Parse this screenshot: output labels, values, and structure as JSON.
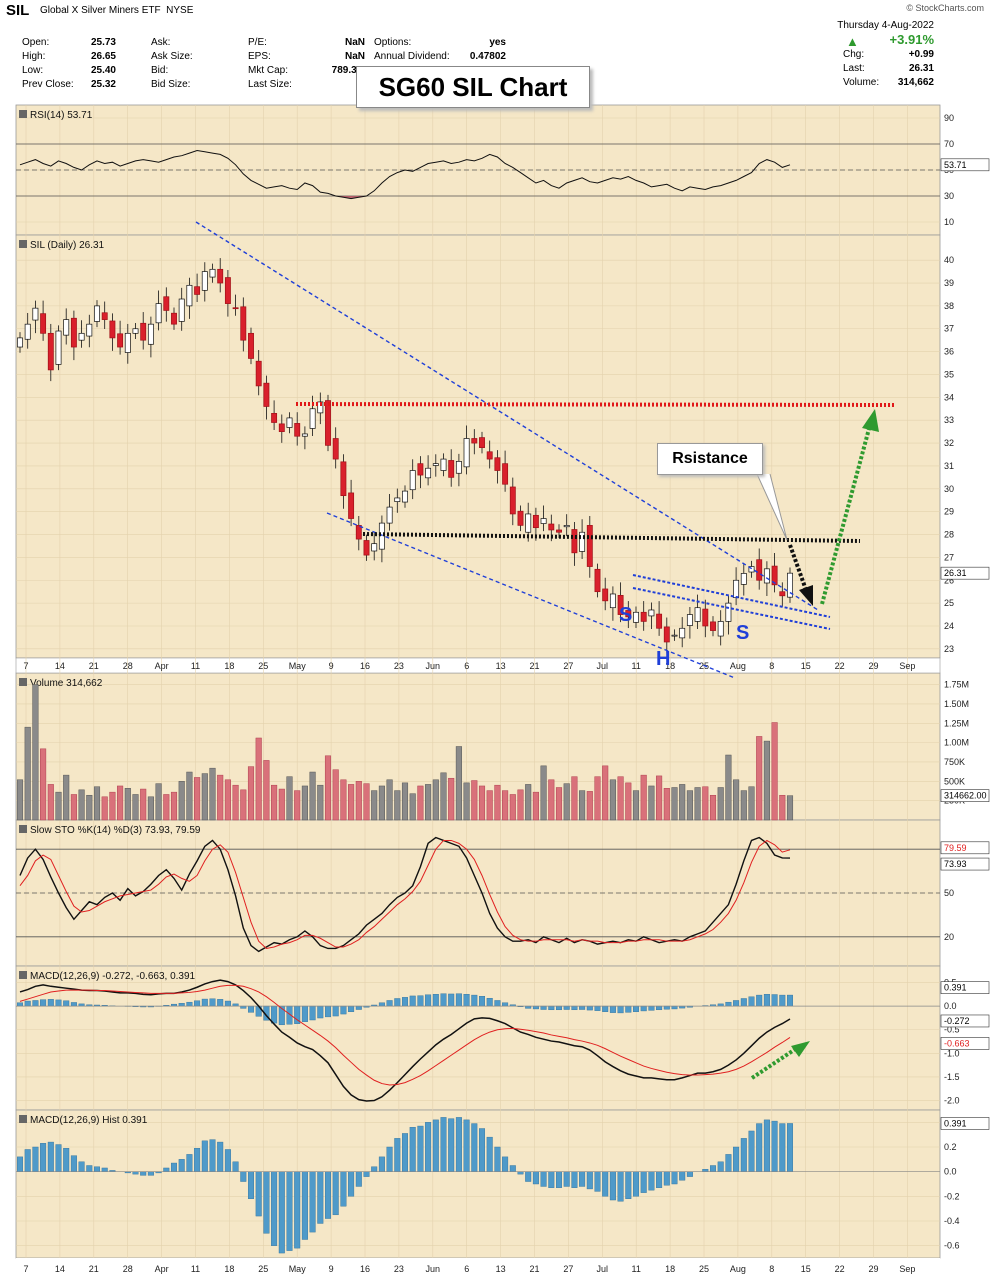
{
  "header": {
    "symbol": "SIL",
    "name": "Global X Silver Miners ETF",
    "exchange": "NYSE",
    "credit": "© StockCharts.com",
    "date": "Thursday  4-Aug-2022",
    "col1": [
      {
        "label": "Open:",
        "value": "25.73"
      },
      {
        "label": "High:",
        "value": "26.65"
      },
      {
        "label": "Low:",
        "value": "25.40"
      },
      {
        "label": "Prev Close:",
        "value": "25.32"
      }
    ],
    "col2": [
      {
        "label": "Ask:",
        "value": ""
      },
      {
        "label": "Ask Size:",
        "value": ""
      },
      {
        "label": "Bid:",
        "value": ""
      },
      {
        "label": "Bid Size:",
        "value": ""
      }
    ],
    "col3": [
      {
        "label": "P/E:",
        "value": "NaN"
      },
      {
        "label": "EPS:",
        "value": "NaN"
      },
      {
        "label": "Mkt Cap:",
        "value": "789.3M"
      },
      {
        "label": "Last Size:",
        "value": ""
      }
    ],
    "col4": [
      {
        "label": "Options:",
        "value": "yes"
      },
      {
        "label": "Annual Dividend:",
        "value": "0.47802"
      }
    ],
    "col5": [
      {
        "label": "",
        "value": "+3.91%"
      },
      {
        "label": "Chg:",
        "value": "+0.99"
      },
      {
        "label": "Last:",
        "value": "26.31"
      },
      {
        "label": "Volume:",
        "value": "314,662"
      }
    ],
    "up_color": "#2e9a2e"
  },
  "annotations": {
    "title_box": "SG60 SIL Chart",
    "resistance_box": "Rsistance",
    "left_shoulder": "S",
    "head": "H",
    "right_shoulder": "S"
  },
  "chart_data": [
    {
      "type": "line",
      "panel": "rsi",
      "legend": "RSI(14) 53.71",
      "last_label": "53.71",
      "levels": [
        70,
        50,
        30
      ],
      "y_ticks": [
        90,
        70,
        50,
        30,
        10
      ],
      "ylim": [
        0,
        100
      ],
      "values": [
        54,
        56,
        58,
        55,
        53,
        57,
        55,
        52,
        50,
        54,
        57,
        55,
        56,
        53,
        55,
        57,
        58,
        57,
        56,
        58,
        60,
        61,
        63,
        65,
        64,
        63,
        62,
        59,
        54,
        47,
        42,
        39,
        36,
        37,
        38,
        36,
        35,
        40,
        38,
        33,
        32,
        30,
        29,
        28,
        29,
        30,
        34,
        40,
        45,
        48,
        50,
        49,
        52,
        55,
        56,
        57,
        55,
        56,
        58,
        57,
        59,
        62,
        60,
        55,
        52,
        48,
        44,
        40,
        42,
        38,
        36,
        40,
        42,
        44,
        41,
        40,
        42,
        44,
        43,
        45,
        42,
        40,
        37,
        38,
        39,
        36,
        34,
        37,
        36,
        35,
        37,
        38,
        40,
        42,
        45,
        48,
        55,
        58,
        56,
        52,
        54
      ]
    },
    {
      "type": "candlestick",
      "panel": "price",
      "legend": "SIL (Daily) 26.31",
      "last_label": "26.31",
      "y_ticks": [
        40,
        39,
        38,
        37,
        36,
        35,
        34,
        33,
        32,
        31,
        30,
        29,
        28,
        27,
        26,
        25,
        24,
        23
      ],
      "ylim": [
        22.6,
        41.1
      ],
      "x_ticks": [
        "7",
        "14",
        "21",
        "28",
        "Apr",
        "11",
        "18",
        "25",
        "May",
        "9",
        "16",
        "23",
        "Jun",
        "6",
        "13",
        "21",
        "27",
        "Jul",
        "11",
        "18",
        "25",
        "Aug",
        "8",
        "15",
        "22",
        "29",
        "Sep"
      ],
      "close": [
        36.6,
        37.2,
        37.9,
        36.8,
        35.2,
        36.9,
        37.4,
        36.2,
        36.8,
        37.2,
        38.0,
        37.4,
        36.6,
        36.2,
        36.8,
        37.0,
        36.5,
        37.2,
        38.1,
        37.8,
        37.2,
        38.3,
        38.9,
        38.5,
        39.5,
        39.6,
        39.0,
        38.1,
        37.9,
        36.5,
        35.7,
        34.5,
        33.6,
        32.9,
        32.5,
        33.1,
        32.3,
        32.4,
        33.5,
        33.8,
        31.9,
        31.3,
        29.7,
        28.7,
        27.8,
        27.1,
        27.6,
        28.5,
        29.2,
        29.6,
        29.9,
        30.8,
        30.6,
        30.9,
        31.1,
        31.3,
        30.5,
        31.2,
        32.2,
        32.0,
        31.8,
        31.3,
        30.8,
        30.2,
        28.9,
        28.4,
        28.9,
        28.3,
        28.7,
        28.2,
        28.1,
        28.4,
        27.2,
        28.1,
        26.6,
        25.5,
        25.1,
        25.4,
        24.5,
        24.4,
        24.6,
        24.2,
        24.7,
        23.9,
        23.3,
        23.6,
        23.9,
        24.5,
        24.8,
        24.0,
        23.8,
        24.2,
        25.0,
        26.0,
        26.3,
        26.6,
        26.0,
        26.5,
        25.8,
        25.32,
        26.31
      ]
    },
    {
      "type": "bar",
      "panel": "volume",
      "legend": "Volume 314,662",
      "last_label": "314662.00",
      "y_ticks": [
        "1.75M",
        "1.50M",
        "1.25M",
        "1.00M",
        "750K",
        "500K",
        "250K"
      ],
      "ylim": [
        0,
        1900000
      ],
      "values": [
        520000,
        1200000,
        1750000,
        920000,
        460000,
        360000,
        580000,
        330000,
        390000,
        320000,
        430000,
        300000,
        360000,
        440000,
        410000,
        330000,
        400000,
        300000,
        470000,
        330000,
        360000,
        500000,
        620000,
        550000,
        600000,
        670000,
        580000,
        520000,
        450000,
        390000,
        690000,
        1060000,
        770000,
        450000,
        400000,
        560000,
        380000,
        440000,
        620000,
        450000,
        830000,
        650000,
        520000,
        460000,
        500000,
        470000,
        380000,
        440000,
        520000,
        380000,
        480000,
        340000,
        440000,
        460000,
        520000,
        610000,
        540000,
        950000,
        480000,
        510000,
        440000,
        380000,
        450000,
        380000,
        330000,
        390000,
        460000,
        360000,
        700000,
        520000,
        420000,
        470000,
        560000,
        380000,
        370000,
        560000,
        700000,
        520000,
        560000,
        480000,
        380000,
        580000,
        440000,
        570000,
        410000,
        420000,
        460000,
        380000,
        420000,
        430000,
        320000,
        420000,
        840000,
        520000,
        380000,
        430000,
        1080000,
        1020000,
        1260000,
        320000,
        314662
      ]
    },
    {
      "type": "line",
      "panel": "stochastic",
      "legend": "Slow STO %K(14) %D(3) 73.93, 79.59",
      "last_labels": [
        "79.59",
        "73.93"
      ],
      "levels": [
        80,
        50,
        20
      ],
      "y_ticks": [
        80,
        50,
        20
      ],
      "ylim": [
        0,
        100
      ],
      "series": [
        {
          "name": "%K",
          "values": [
            62,
            74,
            80,
            73,
            61,
            50,
            40,
            32,
            38,
            44,
            42,
            47,
            50,
            45,
            53,
            48,
            51,
            56,
            62,
            66,
            60,
            52,
            63,
            72,
            82,
            86,
            80,
            66,
            48,
            26,
            14,
            10,
            13,
            16,
            15,
            18,
            20,
            24,
            20,
            14,
            12,
            12,
            14,
            18,
            22,
            28,
            32,
            36,
            42,
            47,
            50,
            55,
            68,
            84,
            88,
            86,
            84,
            82,
            74,
            62,
            50,
            36,
            26,
            20,
            17,
            17,
            18,
            16,
            20,
            18,
            16,
            19,
            16,
            18,
            17,
            15,
            16,
            17,
            16,
            18,
            17,
            20,
            18,
            16,
            17,
            18,
            17,
            20,
            22,
            24,
            30,
            36,
            42,
            56,
            72,
            86,
            88,
            84,
            76,
            74,
            73.93
          ]
        },
        {
          "name": "%D",
          "values": [
            55,
            62,
            72,
            76,
            73,
            62,
            51,
            41,
            37,
            38,
            41,
            44,
            46,
            48,
            49,
            50,
            51,
            52,
            56,
            61,
            63,
            60,
            58,
            62,
            72,
            80,
            83,
            78,
            64,
            47,
            30,
            17,
            12,
            13,
            15,
            16,
            18,
            21,
            21,
            19,
            16,
            13,
            13,
            15,
            18,
            23,
            27,
            32,
            37,
            42,
            46,
            51,
            58,
            69,
            80,
            86,
            86,
            84,
            80,
            73,
            62,
            49,
            37,
            27,
            21,
            18,
            17,
            17,
            18,
            18,
            18,
            18,
            17,
            18,
            17,
            17,
            16,
            16,
            16,
            17,
            17,
            18,
            18,
            18,
            17,
            17,
            17,
            18,
            20,
            22,
            25,
            30,
            36,
            45,
            57,
            71,
            82,
            86,
            83,
            78,
            79.59
          ]
        }
      ]
    },
    {
      "type": "line",
      "panel": "macd",
      "legend": "MACD(12,26,9) -0.272, -0.663, 0.391",
      "last_labels": [
        "0.391",
        "-0.272",
        "-0.663"
      ],
      "y_ticks": [
        0.5,
        0.0,
        -0.5,
        -1.0,
        -1.5,
        -2.0
      ],
      "ylim": [
        -2.2,
        0.85
      ],
      "series": [
        {
          "name": "MACD",
          "values": [
            0.3,
            0.35,
            0.42,
            0.45,
            0.42,
            0.4,
            0.38,
            0.36,
            0.34,
            0.33,
            0.33,
            0.32,
            0.3,
            0.28,
            0.28,
            0.27,
            0.25,
            0.24,
            0.26,
            0.27,
            0.27,
            0.3,
            0.34,
            0.4,
            0.47,
            0.52,
            0.55,
            0.52,
            0.45,
            0.33,
            0.18,
            0.0,
            -0.2,
            -0.38,
            -0.55,
            -0.66,
            -0.78,
            -0.86,
            -0.92,
            -1.05,
            -1.2,
            -1.45,
            -1.7,
            -1.88,
            -1.98,
            -2.01,
            -2.0,
            -1.92,
            -1.78,
            -1.62,
            -1.45,
            -1.28,
            -1.12,
            -0.97,
            -0.82,
            -0.7,
            -0.6,
            -0.48,
            -0.36,
            -0.27,
            -0.25,
            -0.26,
            -0.31,
            -0.37,
            -0.46,
            -0.55,
            -0.6,
            -0.66,
            -0.7,
            -0.74,
            -0.76,
            -0.8,
            -0.84,
            -0.86,
            -0.93,
            -1.05,
            -1.18,
            -1.28,
            -1.37,
            -1.44,
            -1.48,
            -1.52,
            -1.52,
            -1.54,
            -1.56,
            -1.56,
            -1.52,
            -1.47,
            -1.42,
            -1.42,
            -1.39,
            -1.34,
            -1.25,
            -1.14,
            -1.0,
            -0.84,
            -0.68,
            -0.55,
            -0.45,
            -0.37,
            -0.272
          ]
        },
        {
          "name": "Signal",
          "values": [
            0.1,
            0.15,
            0.2,
            0.25,
            0.3,
            0.32,
            0.34,
            0.34,
            0.34,
            0.34,
            0.33,
            0.33,
            0.32,
            0.31,
            0.3,
            0.29,
            0.28,
            0.27,
            0.27,
            0.27,
            0.27,
            0.28,
            0.29,
            0.31,
            0.34,
            0.38,
            0.42,
            0.44,
            0.44,
            0.42,
            0.37,
            0.3,
            0.2,
            0.08,
            -0.05,
            -0.17,
            -0.29,
            -0.4,
            -0.51,
            -0.62,
            -0.74,
            -0.88,
            -1.04,
            -1.19,
            -1.34,
            -1.46,
            -1.57,
            -1.64,
            -1.67,
            -1.66,
            -1.62,
            -1.55,
            -1.47,
            -1.37,
            -1.26,
            -1.15,
            -1.04,
            -0.93,
            -0.82,
            -0.71,
            -0.62,
            -0.55,
            -0.5,
            -0.48,
            -0.47,
            -0.49,
            -0.51,
            -0.54,
            -0.57,
            -0.61,
            -0.64,
            -0.67,
            -0.71,
            -0.74,
            -0.78,
            -0.83,
            -0.9,
            -0.98,
            -1.06,
            -1.13,
            -1.2,
            -1.27,
            -1.32,
            -1.36,
            -1.4,
            -1.43,
            -1.45,
            -1.46,
            -1.46,
            -1.45,
            -1.44,
            -1.42,
            -1.39,
            -1.34,
            -1.27,
            -1.18,
            -1.08,
            -0.98,
            -0.87,
            -0.77,
            -0.663
          ]
        }
      ]
    },
    {
      "type": "bar",
      "panel": "macd_hist",
      "legend": "MACD(12,26,9) Hist 0.391",
      "last_label": "0.391",
      "y_ticks": [
        0.4,
        0.2,
        0.0,
        -0.2,
        -0.4,
        -0.6
      ],
      "ylim": [
        -0.7,
        0.5
      ],
      "x_ticks": [
        "7",
        "14",
        "21",
        "28",
        "Apr",
        "11",
        "18",
        "25",
        "May",
        "9",
        "16",
        "23",
        "Jun",
        "6",
        "13",
        "21",
        "27",
        "Jul",
        "11",
        "18",
        "25",
        "Aug",
        "8",
        "15",
        "22",
        "29",
        "Sep"
      ],
      "values": [
        0.12,
        0.18,
        0.2,
        0.23,
        0.24,
        0.22,
        0.19,
        0.13,
        0.08,
        0.05,
        0.04,
        0.03,
        0.01,
        0.0,
        -0.01,
        -0.02,
        -0.03,
        -0.03,
        -0.01,
        0.03,
        0.07,
        0.1,
        0.14,
        0.19,
        0.25,
        0.26,
        0.24,
        0.18,
        0.08,
        -0.08,
        -0.22,
        -0.36,
        -0.5,
        -0.6,
        -0.66,
        -0.64,
        -0.62,
        -0.55,
        -0.49,
        -0.42,
        -0.38,
        -0.35,
        -0.28,
        -0.2,
        -0.12,
        -0.04,
        0.04,
        0.12,
        0.2,
        0.27,
        0.31,
        0.36,
        0.37,
        0.4,
        0.42,
        0.44,
        0.43,
        0.44,
        0.42,
        0.39,
        0.35,
        0.28,
        0.2,
        0.12,
        0.05,
        -0.02,
        -0.08,
        -0.1,
        -0.12,
        -0.13,
        -0.13,
        -0.12,
        -0.13,
        -0.12,
        -0.14,
        -0.16,
        -0.2,
        -0.23,
        -0.24,
        -0.22,
        -0.2,
        -0.17,
        -0.15,
        -0.13,
        -0.11,
        -0.1,
        -0.07,
        -0.04,
        0.0,
        0.02,
        0.05,
        0.08,
        0.14,
        0.2,
        0.27,
        0.33,
        0.39,
        0.42,
        0.41,
        0.39,
        0.391
      ]
    }
  ]
}
